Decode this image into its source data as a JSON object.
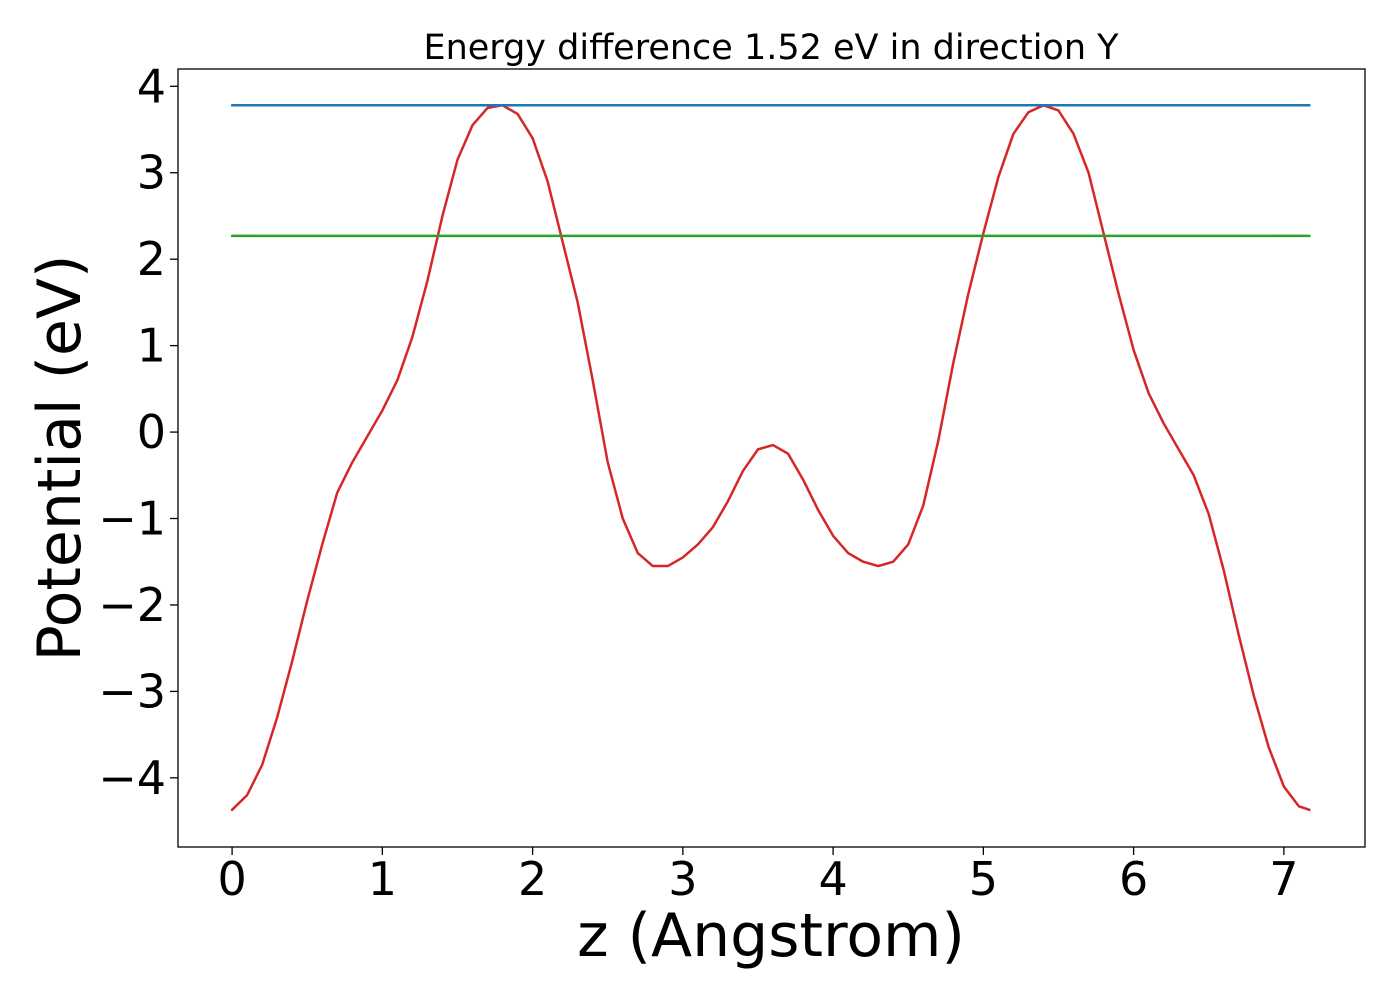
{
  "chart_data": {
    "type": "line",
    "title": "Energy difference 1.52 eV in direction Y",
    "xlabel": "z (Angstrom)",
    "ylabel": "Potential (eV)",
    "xlim": [
      -0.36,
      7.54
    ],
    "ylim": [
      -4.8,
      4.2
    ],
    "xticks": [
      0,
      1,
      2,
      3,
      4,
      5,
      6,
      7
    ],
    "yticks": [
      -4,
      -3,
      -2,
      -1,
      0,
      1,
      2,
      3,
      4
    ],
    "grid": false,
    "legend": "none",
    "series": [
      {
        "color": "#d62728",
        "x": [
          0,
          0.1,
          0.2,
          0.3,
          0.4,
          0.5,
          0.6,
          0.7,
          0.8,
          0.9,
          1.0,
          1.1,
          1.2,
          1.3,
          1.4,
          1.5,
          1.6,
          1.7,
          1.8,
          1.9,
          2.0,
          2.1,
          2.2,
          2.3,
          2.4,
          2.5,
          2.6,
          2.7,
          2.8,
          2.9,
          3.0,
          3.1,
          3.2,
          3.3,
          3.4,
          3.5,
          3.6,
          3.7,
          3.8,
          3.9,
          4.0,
          4.1,
          4.2,
          4.3,
          4.4,
          4.5,
          4.6,
          4.7,
          4.8,
          4.9,
          5.0,
          5.1,
          5.2,
          5.3,
          5.4,
          5.5,
          5.6,
          5.7,
          5.8,
          5.9,
          6.0,
          6.1,
          6.2,
          6.3,
          6.4,
          6.5,
          6.6,
          6.7,
          6.8,
          6.9,
          7.0,
          7.1,
          7.17
        ],
        "values": [
          -4.37,
          -4.2,
          -3.85,
          -3.3,
          -2.65,
          -1.95,
          -1.3,
          -0.7,
          -0.35,
          -0.05,
          0.25,
          0.6,
          1.1,
          1.75,
          2.5,
          3.15,
          3.55,
          3.75,
          3.78,
          3.68,
          3.4,
          2.9,
          2.2,
          1.5,
          0.6,
          -0.35,
          -1.0,
          -1.4,
          -1.55,
          -1.55,
          -1.45,
          -1.3,
          -1.1,
          -0.8,
          -0.45,
          -0.2,
          -0.15,
          -0.25,
          -0.55,
          -0.9,
          -1.2,
          -1.4,
          -1.5,
          -1.55,
          -1.5,
          -1.3,
          -0.85,
          -0.1,
          0.8,
          1.6,
          2.3,
          2.95,
          3.45,
          3.7,
          3.78,
          3.72,
          3.45,
          3.0,
          2.3,
          1.6,
          0.95,
          0.45,
          0.1,
          -0.2,
          -0.5,
          -0.95,
          -1.6,
          -2.35,
          -3.05,
          -3.65,
          -4.1,
          -4.33,
          -4.37
        ]
      },
      {
        "color": "#1f77b4",
        "x": [
          0,
          7.17
        ],
        "values": [
          3.78,
          3.78
        ]
      },
      {
        "color": "#2ca02c",
        "x": [
          0,
          7.17
        ],
        "values": [
          2.27,
          2.27
        ]
      }
    ]
  }
}
